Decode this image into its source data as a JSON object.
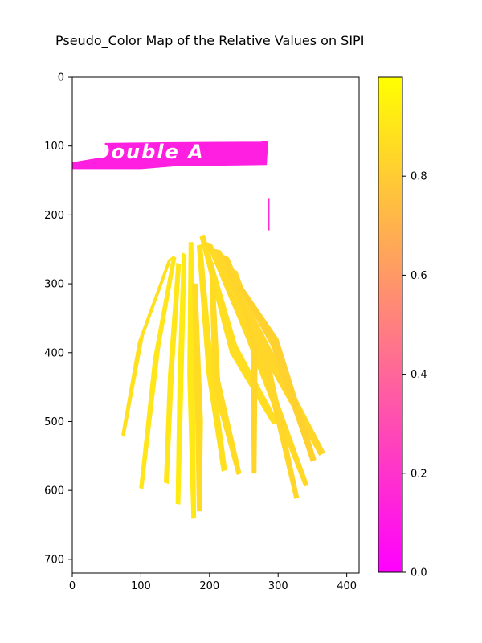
{
  "chart_data": {
    "type": "heatmap",
    "title": "Pseudo_Color Map of the Relative Values on SIPI",
    "xlabel": "",
    "ylabel": "",
    "colormap": "spring",
    "colormap_stops": [
      {
        "value": 0.0,
        "color": "#ff00ff"
      },
      {
        "value": 1.0,
        "color": "#ffff00"
      }
    ],
    "background_color": "#ffffff",
    "x_ticks": [
      "0",
      "100",
      "200",
      "300",
      "400"
    ],
    "y_ticks": [
      "0",
      "100",
      "200",
      "300",
      "400",
      "500",
      "600",
      "700"
    ],
    "colorbar_ticks": [
      "0.0",
      "0.2",
      "0.4",
      "0.6",
      "0.8"
    ],
    "xlim": [
      0,
      418
    ],
    "ylim": [
      720,
      0
    ],
    "colorbar_range": [
      0,
      1
    ],
    "image_text": "Double A",
    "regions": [
      {
        "name": "label-strip",
        "value": 0.12,
        "outline": [
          [
            0,
            124
          ],
          [
            48,
            116
          ],
          [
            48,
            96
          ],
          [
            130,
            95
          ],
          [
            275,
            94
          ],
          [
            285,
            93
          ],
          [
            283,
            127
          ],
          [
            150,
            129
          ],
          [
            100,
            133
          ],
          [
            0,
            133
          ]
        ]
      },
      {
        "name": "thin-mark",
        "value": 0.18,
        "outline": [
          [
            286,
            176
          ],
          [
            287,
            176
          ],
          [
            287,
            222
          ],
          [
            286,
            222
          ]
        ]
      },
      {
        "name": "leaf-1",
        "value": 0.88,
        "outline": [
          [
            140,
            265
          ],
          [
            145,
            262
          ],
          [
            104,
            375
          ],
          [
            76,
            522
          ],
          [
            72,
            519
          ],
          [
            96,
            385
          ]
        ]
      },
      {
        "name": "leaf-2",
        "value": 0.9,
        "outline": [
          [
            146,
            260
          ],
          [
            151,
            262
          ],
          [
            128,
            390
          ],
          [
            103,
            598
          ],
          [
            98,
            596
          ],
          [
            118,
            410
          ]
        ]
      },
      {
        "name": "leaf-3",
        "value": 0.9,
        "outline": [
          [
            152,
            270
          ],
          [
            158,
            272
          ],
          [
            148,
            420
          ],
          [
            140,
            590
          ],
          [
            134,
            588
          ],
          [
            140,
            430
          ]
        ]
      },
      {
        "name": "leaf-4",
        "value": 0.92,
        "outline": [
          [
            160,
            255
          ],
          [
            166,
            258
          ],
          [
            162,
            420
          ],
          [
            157,
            620
          ],
          [
            151,
            619
          ],
          [
            154,
            430
          ]
        ]
      },
      {
        "name": "leaf-5",
        "value": 0.91,
        "outline": [
          [
            170,
            240
          ],
          [
            176,
            240
          ],
          [
            178,
            420
          ],
          [
            180,
            640
          ],
          [
            174,
            641
          ],
          [
            168,
            430
          ]
        ]
      },
      {
        "name": "leaf-6",
        "value": 0.88,
        "outline": [
          [
            182,
            245
          ],
          [
            189,
            243
          ],
          [
            205,
            420
          ],
          [
            225,
            570
          ],
          [
            218,
            572
          ],
          [
            196,
            430
          ]
        ]
      },
      {
        "name": "leaf-7",
        "value": 0.87,
        "outline": [
          [
            186,
            232
          ],
          [
            193,
            230
          ],
          [
            240,
            390
          ],
          [
            300,
            500
          ],
          [
            292,
            504
          ],
          [
            230,
            400
          ]
        ]
      },
      {
        "name": "leaf-8",
        "value": 0.85,
        "outline": [
          [
            195,
            240
          ],
          [
            203,
            242
          ],
          [
            260,
            360
          ],
          [
            344,
            592
          ],
          [
            338,
            594
          ],
          [
            250,
            370
          ]
        ]
      },
      {
        "name": "leaf-9",
        "value": 0.84,
        "outline": [
          [
            208,
            250
          ],
          [
            216,
            252
          ],
          [
            300,
            415
          ],
          [
            368,
            545
          ],
          [
            360,
            549
          ],
          [
            290,
            425
          ]
        ]
      },
      {
        "name": "leaf-10",
        "value": 0.83,
        "outline": [
          [
            220,
            258
          ],
          [
            228,
            262
          ],
          [
            270,
            360
          ],
          [
            268,
            575
          ],
          [
            262,
            575
          ],
          [
            260,
            370
          ]
        ]
      },
      {
        "name": "leaf-11",
        "value": 0.84,
        "outline": [
          [
            232,
            278
          ],
          [
            240,
            282
          ],
          [
            285,
            400
          ],
          [
            330,
            610
          ],
          [
            324,
            612
          ],
          [
            276,
            410
          ]
        ]
      },
      {
        "name": "leaf-12",
        "value": 0.86,
        "outline": [
          [
            200,
            270
          ],
          [
            206,
            270
          ],
          [
            215,
            440
          ],
          [
            246,
            575
          ],
          [
            240,
            577
          ],
          [
            205,
            450
          ]
        ]
      },
      {
        "name": "leaf-13",
        "value": 0.82,
        "outline": [
          [
            240,
            300
          ],
          [
            248,
            304
          ],
          [
            300,
            380
          ],
          [
            355,
            555
          ],
          [
            348,
            558
          ],
          [
            290,
            390
          ]
        ]
      },
      {
        "name": "leaf-14",
        "value": 0.86,
        "outline": [
          [
            175,
            300
          ],
          [
            182,
            300
          ],
          [
            190,
            500
          ],
          [
            188,
            630
          ],
          [
            182,
            630
          ],
          [
            180,
            510
          ]
        ]
      }
    ]
  }
}
